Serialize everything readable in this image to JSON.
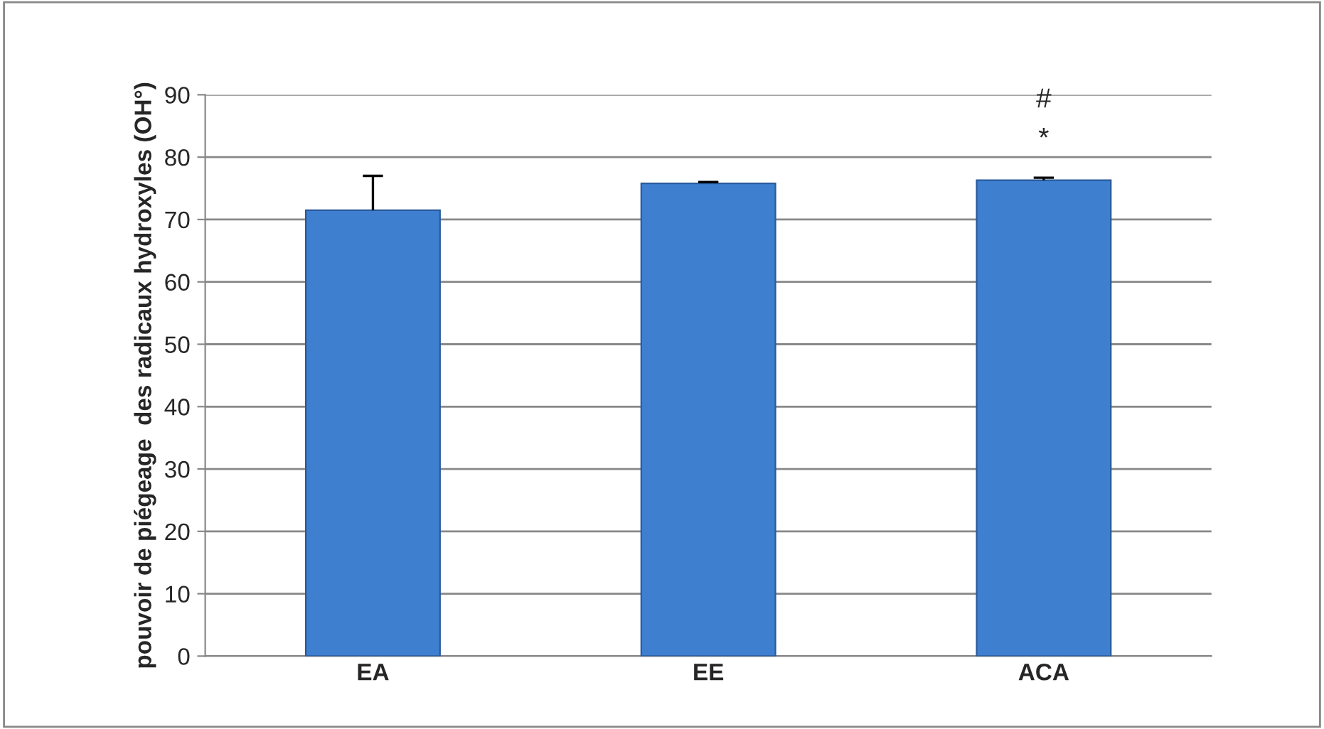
{
  "chart_data": {
    "type": "bar",
    "ylabel": "pouvoir de piégeage  des radicaux hydroxyles (OH°)",
    "categories": [
      "EA",
      "EE",
      "ACA"
    ],
    "series": [
      {
        "color": "#3f7fd0",
        "values": [
          71.5,
          75.8,
          76.3
        ],
        "errors": [
          [
            71.5,
            77
          ],
          [
            75.8,
            76
          ],
          [
            76.3,
            76.7
          ]
        ]
      }
    ],
    "ylim": [
      0,
      90
    ],
    "yticks": [
      0,
      10,
      20,
      30,
      40,
      50,
      60,
      70,
      80,
      90
    ],
    "grid": "y",
    "legend": false,
    "annotations": [
      "*",
      "#"
    ]
  }
}
